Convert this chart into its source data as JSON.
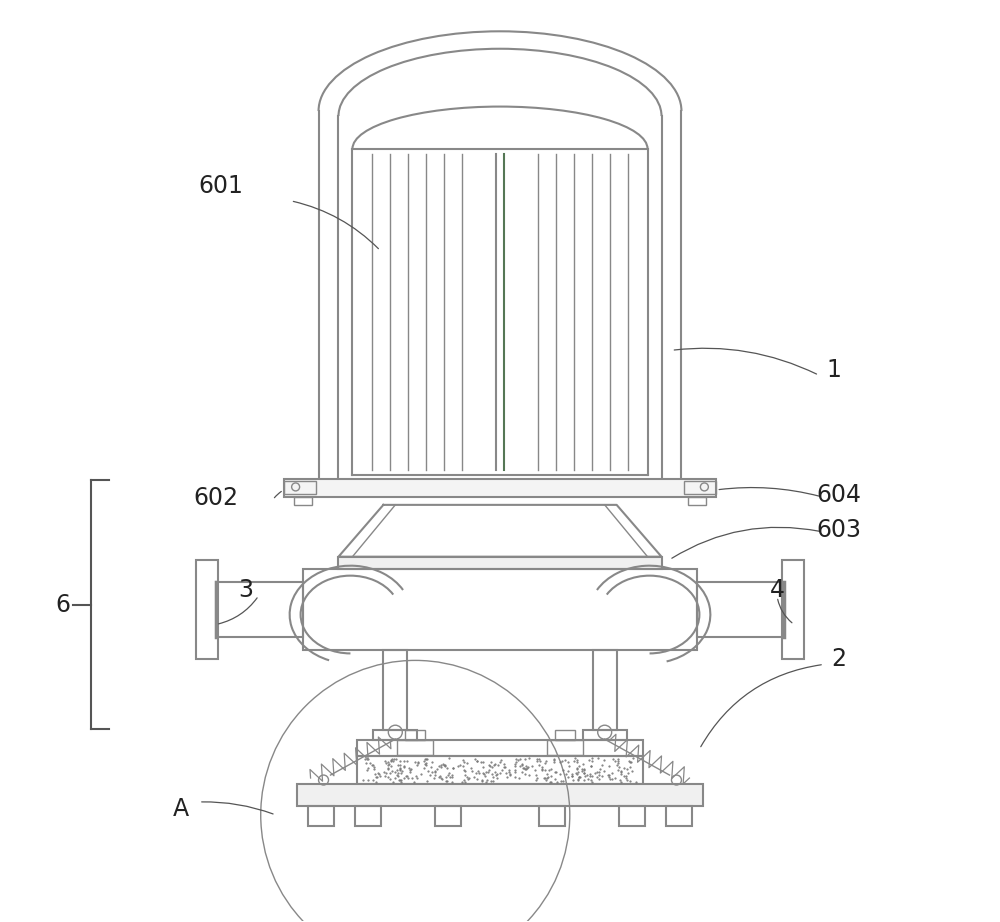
{
  "bg_color": "#ffffff",
  "lc": "#888888",
  "lcd": "#555555",
  "green": "#557755",
  "label_color": "#222222",
  "figsize": [
    10.0,
    9.22
  ],
  "dpi": 100
}
